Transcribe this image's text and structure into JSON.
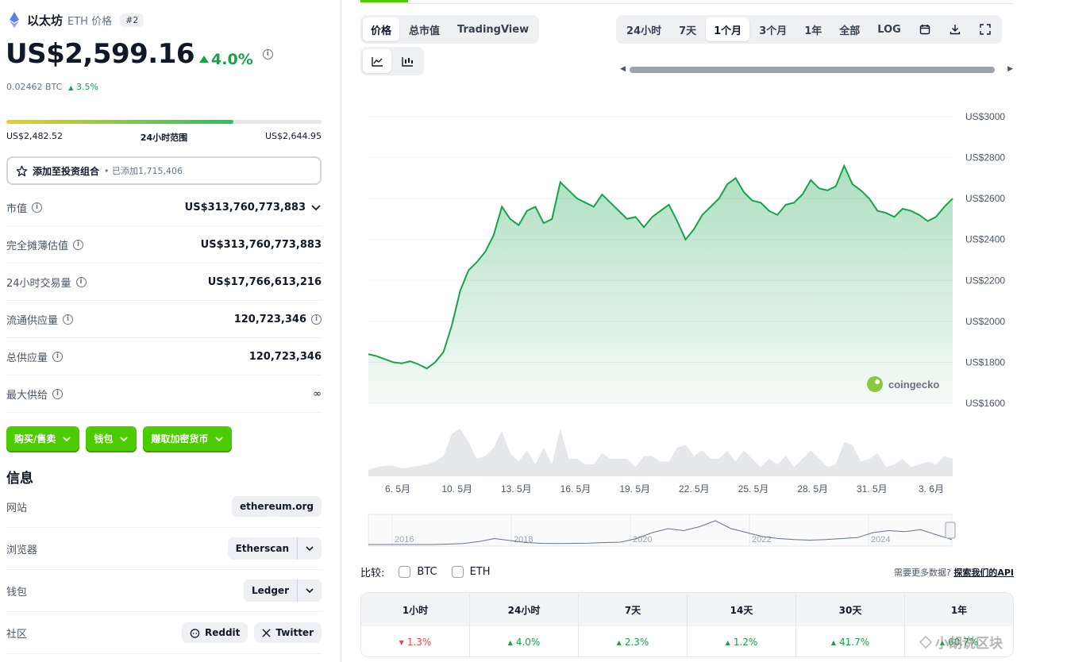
{
  "coin": {
    "name": "以太坊",
    "symbol": "ETH 价格",
    "rank": "#2",
    "price": "US$2,599.16",
    "change_24h": "4.0%",
    "btc_price": "0.02462 BTC",
    "btc_change": "3.5%"
  },
  "range": {
    "low": "US$2,482.52",
    "label": "24小时范围",
    "high": "US$2,644.95",
    "fill_fraction": 0.72
  },
  "portfolio": {
    "label": "添加至投资组合",
    "added": "• 已添加1,715,406"
  },
  "stats": [
    {
      "label": "市值",
      "value": "US$313,760,773,883"
    },
    {
      "label": "完全摊薄估值",
      "value": "US$313,760,773,883"
    },
    {
      "label": "24小时交易量",
      "value": "US$17,766,613,216"
    },
    {
      "label": "流通供应量",
      "value": "120,723,346"
    },
    {
      "label": "总供应量",
      "value": "120,723,346"
    },
    {
      "label": "最大供给",
      "value": "∞"
    }
  ],
  "actions": {
    "buy": "购买/售卖",
    "wallet": "钱包",
    "earn": "赚取加密货币"
  },
  "info": {
    "title": "信息",
    "website_label": "网站",
    "website_value": "ethereum.org",
    "explorer_label": "浏览器",
    "explorer_value": "Etherscan",
    "wallet_label": "钱包",
    "wallet_value": "Ledger",
    "community_label": "社区",
    "reddit": "Reddit",
    "twitter": "Twitter"
  },
  "chart_tabs": {
    "price": "价格",
    "market_cap": "总市值",
    "tradingview": "TradingView"
  },
  "time_tabs": [
    "24小时",
    "7天",
    "1个月",
    "3个月",
    "1年",
    "全部",
    "LOG"
  ],
  "time_active": "1个月",
  "colors": {
    "accent": "#4bcc00",
    "up": "#16a34a",
    "down": "#ef4444",
    "line": "#16a34a"
  },
  "chart_data": {
    "type": "area",
    "brand": "coingecko",
    "y_ticks": [
      "US$3000",
      "US$2800",
      "US$2600",
      "US$2400",
      "US$2200",
      "US$2000",
      "US$1800",
      "US$1600"
    ],
    "ylim": [
      1600,
      3000
    ],
    "x_ticks": [
      "6. 5月",
      "10. 5月",
      "13. 5月",
      "16. 5月",
      "19. 5月",
      "22. 5月",
      "25. 5月",
      "28. 5月",
      "31. 5月",
      "3. 6月"
    ],
    "series": [
      {
        "values": [
          1840,
          1830,
          1815,
          1800,
          1795,
          1805,
          1790,
          1770,
          1800,
          1850,
          1980,
          2150,
          2250,
          2290,
          2340,
          2420,
          2560,
          2500,
          2470,
          2540,
          2560,
          2480,
          2500,
          2680,
          2640,
          2600,
          2580,
          2560,
          2620,
          2580,
          2540,
          2500,
          2510,
          2460,
          2510,
          2540,
          2570,
          2490,
          2400,
          2450,
          2520,
          2560,
          2600,
          2670,
          2700,
          2630,
          2590,
          2580,
          2540,
          2520,
          2570,
          2580,
          2620,
          2690,
          2650,
          2640,
          2660,
          2760,
          2670,
          2640,
          2600,
          2540,
          2530,
          2510,
          2550,
          2540,
          2520,
          2490,
          2510,
          2560,
          2600
        ]
      }
    ],
    "overview_ticks": [
      "2016",
      "2018",
      "2020",
      "2022",
      "2024"
    ]
  },
  "compare": {
    "label": "比较:",
    "btc": "BTC",
    "eth": "ETH",
    "note": "需要更多数据?",
    "api_link": "探索我们的API"
  },
  "performance": {
    "headers": [
      "1小时",
      "24小时",
      "7天",
      "14天",
      "30天",
      "1年"
    ],
    "values": [
      {
        "text": "1.3%",
        "dir": "down"
      },
      {
        "text": "4.0%",
        "dir": "up"
      },
      {
        "text": "2.3%",
        "dir": "up"
      },
      {
        "text": "1.2%",
        "dir": "up"
      },
      {
        "text": "41.7%",
        "dir": "up"
      },
      {
        "text": "60.7%",
        "dir": "up"
      }
    ]
  },
  "watermark": "小胡说区块"
}
